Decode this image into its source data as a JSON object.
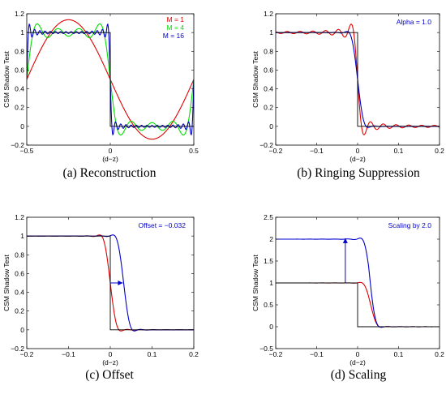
{
  "chart_data": [
    {
      "id": "a",
      "type": "line",
      "caption": "(a) Reconstruction",
      "xlabel": "(d−z)",
      "ylabel": "CSM Shadow Test",
      "xlim": [
        -0.5,
        0.5
      ],
      "ylim": [
        -0.2,
        1.2
      ],
      "xticks": [
        -0.5,
        0,
        0.5
      ],
      "xtick_labels": [
        "−0.5",
        "0",
        "0.5"
      ],
      "yticks": [
        -0.2,
        0,
        0.2,
        0.4,
        0.6,
        0.8,
        1,
        1.2
      ],
      "ytick_labels": [
        "−0.2",
        "0",
        "0.2",
        "0.4",
        "0.6",
        "0.8",
        "1",
        "1.2"
      ],
      "legend": [
        {
          "text": "M = 1",
          "color": "#e00000"
        },
        {
          "text": "M = 4",
          "color": "#00dd00"
        },
        {
          "text": "M = 16",
          "color": "#0000cc"
        }
      ],
      "legend_position": "top-right",
      "series": [
        {
          "name": "M = 1",
          "color": "#e00000",
          "kind": "fourier",
          "M": 1,
          "period": 1.0
        },
        {
          "name": "M = 4",
          "color": "#00dd00",
          "kind": "fourier",
          "M": 4,
          "period": 1.0
        },
        {
          "name": "M = 16",
          "color": "#0000cc",
          "kind": "fourier",
          "M": 16,
          "period": 1.0
        },
        {
          "color": "#000000",
          "kind": "step",
          "step_at": 0
        }
      ]
    },
    {
      "id": "b",
      "type": "line",
      "caption": "(b) Ringing Suppression",
      "xlabel": "(d−z)",
      "ylabel": "CSM Shadow Test",
      "xlim": [
        -0.2,
        0.2
      ],
      "ylim": [
        -0.2,
        1.2
      ],
      "xticks": [
        -0.2,
        -0.1,
        0,
        0.1,
        0.2
      ],
      "xtick_labels": [
        "−0.2",
        "−0.1",
        "0",
        "0.1",
        "0.2"
      ],
      "yticks": [
        -0.2,
        0,
        0.2,
        0.4,
        0.6,
        0.8,
        1,
        1.2
      ],
      "ytick_labels": [
        "−0.2",
        "0",
        "0.2",
        "0.4",
        "0.6",
        "0.8",
        "1",
        "1.2"
      ],
      "annotation": {
        "text": "Alpha = 1.0",
        "color": "#0000cc"
      },
      "series": [
        {
          "color": "#e00000",
          "kind": "fourier",
          "M": 16,
          "period": 1.0
        },
        {
          "color": "#0000cc",
          "kind": "damped",
          "M": 16,
          "period": 1.0,
          "alpha": 1.0
        },
        {
          "color": "#000000",
          "kind": "step",
          "step_at": 0
        }
      ]
    },
    {
      "id": "c",
      "type": "line",
      "caption": "(c) Offset",
      "xlabel": "(d−z)",
      "ylabel": "CSM Shadow Test",
      "xlim": [
        -0.2,
        0.2
      ],
      "ylim": [
        -0.2,
        1.2
      ],
      "xticks": [
        -0.2,
        -0.1,
        0,
        0.1,
        0.2
      ],
      "xtick_labels": [
        "−0.2",
        "−0.1",
        "0",
        "0.1",
        "0.2"
      ],
      "yticks": [
        -0.2,
        0,
        0.2,
        0.4,
        0.6,
        0.8,
        1,
        1.2
      ],
      "ytick_labels": [
        "−0.2",
        "0",
        "0.2",
        "0.4",
        "0.6",
        "0.8",
        "1",
        "1.2"
      ],
      "annotation": {
        "text": "Offset = −0.032",
        "color": "#0000cc"
      },
      "arrow": {
        "from": [
          0.0,
          0.5
        ],
        "to": [
          0.03,
          0.5
        ],
        "color": "#0000cc"
      },
      "series": [
        {
          "color": "#e00000",
          "kind": "damped",
          "M": 16,
          "period": 1.0,
          "alpha": 1.0
        },
        {
          "color": "#0000cc",
          "kind": "damped",
          "M": 16,
          "period": 1.0,
          "alpha": 1.0,
          "shift": 0.032
        },
        {
          "color": "#000000",
          "kind": "step",
          "step_at": 0
        }
      ]
    },
    {
      "id": "d",
      "type": "line",
      "caption": "(d) Scaling",
      "xlabel": "(d−z)",
      "ylabel": "CSM Shadow Test",
      "xlim": [
        -0.2,
        0.2
      ],
      "ylim": [
        -0.5,
        2.5
      ],
      "xticks": [
        -0.2,
        -0.1,
        0,
        0.1,
        0.2
      ],
      "xtick_labels": [
        "−0.2",
        "−0.1",
        "0",
        "0.1",
        "0.2"
      ],
      "yticks": [
        -0.5,
        0,
        0.5,
        1,
        1.5,
        2,
        2.5
      ],
      "ytick_labels": [
        "−0.5",
        "0",
        "0.5",
        "1",
        "1.5",
        "2",
        "2.5"
      ],
      "annotation": {
        "text": "Scaling by 2.0",
        "color": "#0000cc"
      },
      "arrow": {
        "from": [
          -0.03,
          1.0
        ],
        "to": [
          -0.03,
          2.02
        ],
        "color": "#0000cc"
      },
      "series": [
        {
          "color": "#e00000",
          "kind": "damped",
          "M": 16,
          "period": 1.0,
          "alpha": 1.0,
          "shift": 0.032
        },
        {
          "color": "#0000cc",
          "kind": "damped",
          "M": 16,
          "period": 1.0,
          "alpha": 1.0,
          "shift": 0.032,
          "scale": 2.0
        },
        {
          "color": "#000000",
          "kind": "step",
          "step_at": 0
        }
      ]
    }
  ]
}
